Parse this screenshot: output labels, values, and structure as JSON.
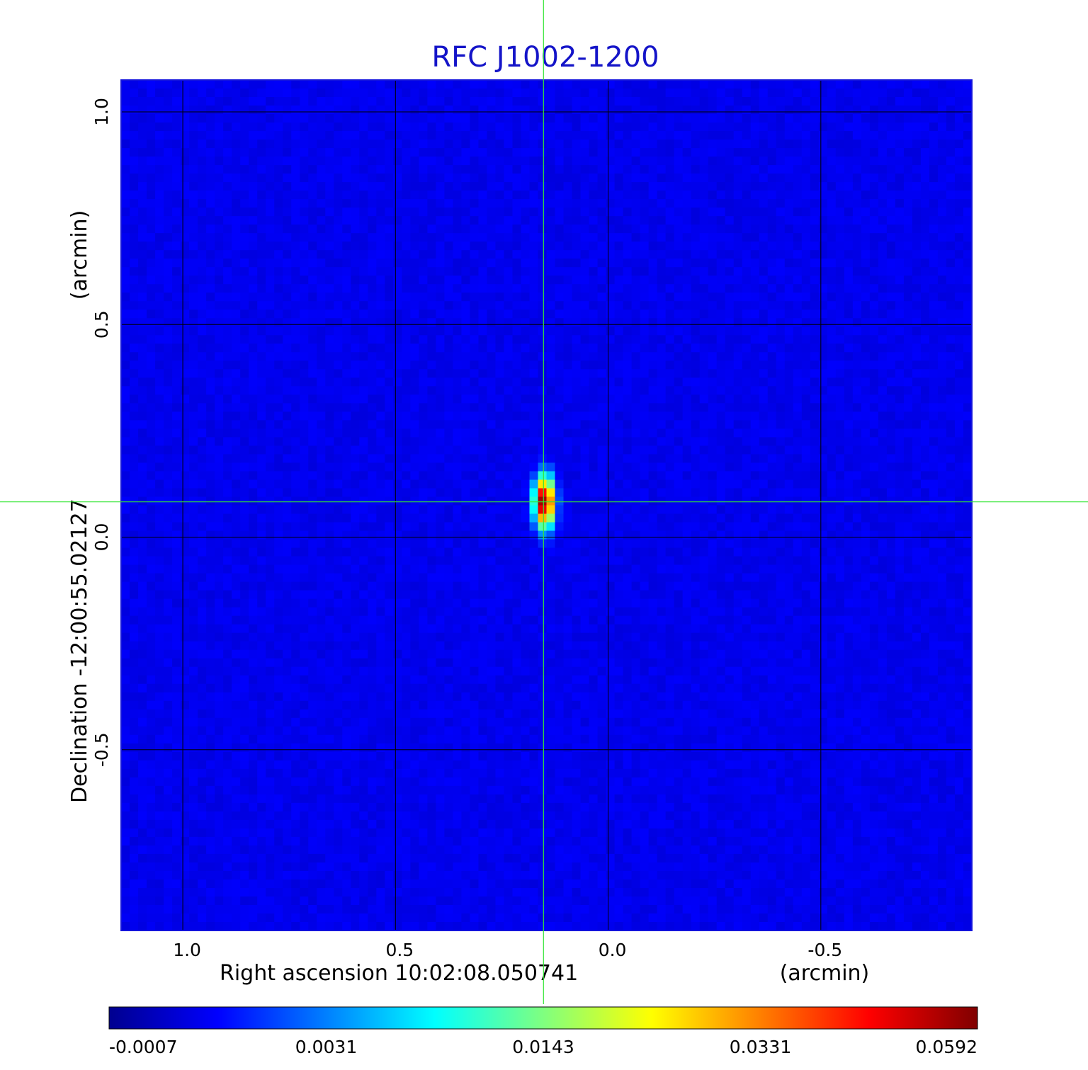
{
  "chart_data": {
    "type": "heatmap",
    "title": "RFC J1002-1200",
    "xlabel": "Right ascension  10:02:08.050741",
    "xunit": "(arcmin)",
    "ylabel": "Declination  -12:00:55.02127",
    "yunit": "(arcmin)",
    "xlim": [
      1.145,
      -0.855
    ],
    "ylim": [
      -0.925,
      1.075
    ],
    "x_reversed": true,
    "grid": true,
    "x_ticks": [
      {
        "value": 1.0,
        "label": "1.0"
      },
      {
        "value": 0.5,
        "label": "0.5"
      },
      {
        "value": 0.0,
        "label": "0.0"
      },
      {
        "value": -0.5,
        "label": "-0.5"
      }
    ],
    "y_ticks": [
      {
        "value": 1.0,
        "label": "1.0"
      },
      {
        "value": 0.5,
        "label": "0.5"
      },
      {
        "value": 0.0,
        "label": "0.0"
      },
      {
        "value": -0.5,
        "label": "-0.5"
      }
    ],
    "colormap": "jet",
    "colorbar": {
      "ticks": [
        "-0.0007",
        "0.0031",
        "0.0143",
        "0.0331",
        "0.0592"
      ],
      "min": -0.0007,
      "max": 0.0592
    },
    "source": {
      "x": 0.15,
      "y": 0.083,
      "peak": 0.0592,
      "sigma_x": 0.013,
      "sigma_y": 0.033
    },
    "noise_level": 0.0004,
    "crosshair": {
      "x": 0.152,
      "y": 0.083,
      "color": "#33e633"
    }
  }
}
